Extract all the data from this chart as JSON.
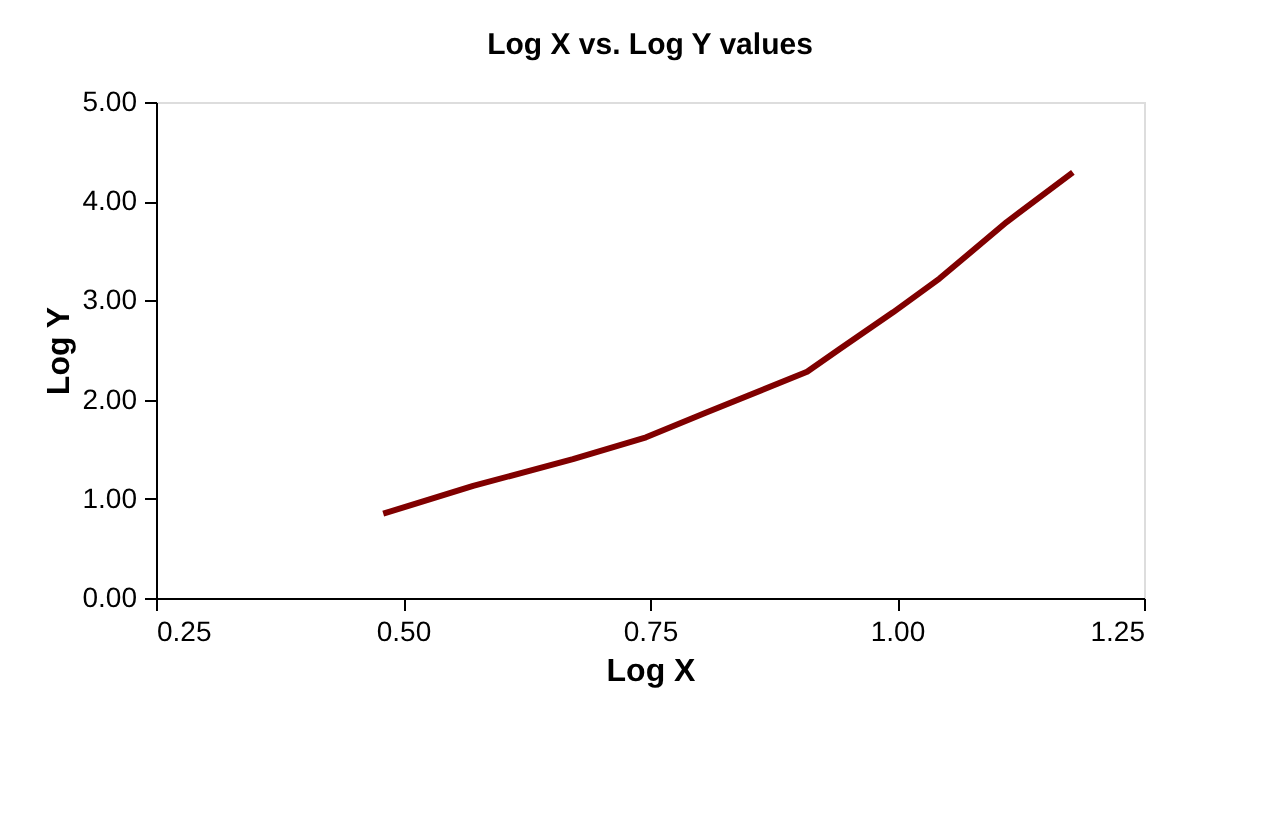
{
  "chart_data": {
    "type": "line",
    "title": "Log X vs. Log Y values",
    "xlabel": "Log X",
    "ylabel": "Log Y",
    "series": [
      {
        "color": "#800000",
        "x": [
          0.48,
          0.571,
          0.672,
          0.746,
          0.807,
          0.909,
          0.942,
          0.996,
          1.043,
          1.111,
          1.178
        ],
        "values": [
          0.85,
          1.13,
          1.4,
          1.62,
          1.87,
          2.28,
          2.51,
          2.88,
          3.22,
          3.79,
          4.29
        ]
      }
    ],
    "xlim": [
      0.25,
      1.25
    ],
    "xticks": [
      {
        "value": 0.25,
        "label": "0.25"
      },
      {
        "value": 0.5,
        "label": "0.50"
      },
      {
        "value": 0.75,
        "label": "0.75"
      },
      {
        "value": 1.0,
        "label": "1.00"
      },
      {
        "value": 1.25,
        "label": "1.25"
      }
    ],
    "ylim": [
      0,
      5
    ],
    "yticks": [
      {
        "value": 0,
        "label": "0.00"
      },
      {
        "value": 1,
        "label": "1.00"
      },
      {
        "value": 2,
        "label": "2.00"
      },
      {
        "value": 3,
        "label": "3.00"
      },
      {
        "value": 4,
        "label": "4.00"
      },
      {
        "value": 5,
        "label": "5.00"
      }
    ],
    "grid": false,
    "legend": false,
    "marker": "none",
    "line_style": "solid"
  }
}
